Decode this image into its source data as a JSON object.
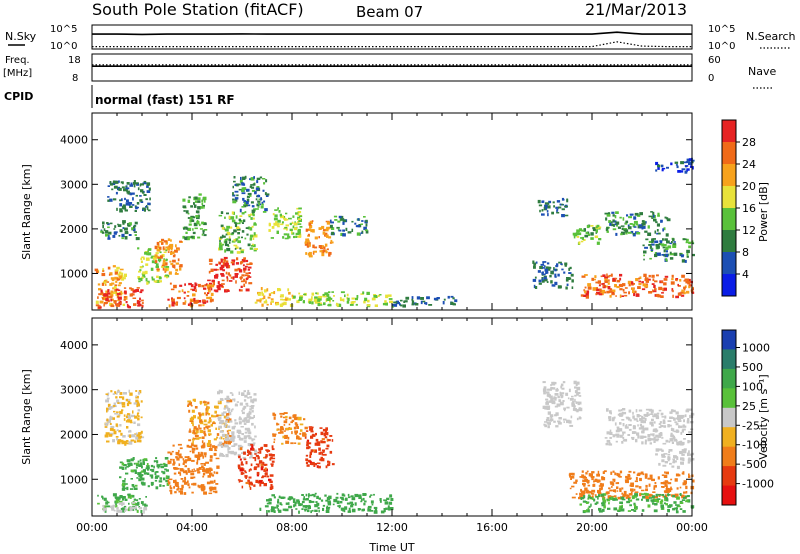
{
  "header": {
    "station": "South Pole Station (fitACF)",
    "beam": "Beam 07",
    "date": "21/Mar/2013",
    "program": "normal (fast) 151 RF"
  },
  "labels": {
    "nsky": "N.Sky",
    "nsearch": "N.Search",
    "freq": "Freq.",
    "freq_unit": "[MHz]",
    "nave": "Nave",
    "cpid": "CPID",
    "nsky_hi": "10^5",
    "nsky_lo": "10^0",
    "nsearch_hi": "10^5",
    "nsearch_lo": "10^0",
    "freq_hi": "18",
    "freq_lo": "8",
    "nave_hi": "60",
    "nave_lo": "0"
  },
  "chart_data": [
    {
      "type": "heatmap",
      "panel": "power",
      "ylabel": "Slant Range [km]",
      "xlabel": "",
      "ylim": [
        180,
        4600
      ],
      "xlim": [
        0,
        24
      ],
      "yticks": [
        "1000",
        "2000",
        "3000",
        "4000"
      ],
      "colorbar": {
        "label": "Power [dB]",
        "ticks": [
          "4",
          "8",
          "12",
          "16",
          "20",
          "24",
          "28"
        ],
        "colors": [
          "#0a1de6",
          "#1c4fb3",
          "#2f7c3f",
          "#59c13a",
          "#e8e23a",
          "#f7a21c",
          "#f06a18",
          "#e62323"
        ]
      },
      "regions": [
        {
          "t0": 0.1,
          "t1": 1.3,
          "r0": 300,
          "r1": 1200,
          "level": 20
        },
        {
          "t0": 0.2,
          "t1": 2.0,
          "r0": 250,
          "r1": 700,
          "level": 26
        },
        {
          "t0": 0.3,
          "t1": 1.8,
          "r0": 1800,
          "r1": 2200,
          "level": 8
        },
        {
          "t0": 0.6,
          "t1": 2.3,
          "r0": 2400,
          "r1": 3100,
          "level": 6
        },
        {
          "t0": 1.8,
          "t1": 3.0,
          "r0": 800,
          "r1": 1600,
          "level": 14
        },
        {
          "t0": 2.5,
          "t1": 3.5,
          "r0": 1000,
          "r1": 1800,
          "level": 22
        },
        {
          "t0": 3.0,
          "t1": 4.8,
          "r0": 300,
          "r1": 800,
          "level": 24
        },
        {
          "t0": 3.6,
          "t1": 4.5,
          "r0": 1800,
          "r1": 2800,
          "level": 10
        },
        {
          "t0": 4.6,
          "t1": 6.3,
          "r0": 600,
          "r1": 1400,
          "level": 26
        },
        {
          "t0": 5.0,
          "t1": 6.5,
          "r0": 1500,
          "r1": 2400,
          "level": 12
        },
        {
          "t0": 5.6,
          "t1": 7.0,
          "r0": 2400,
          "r1": 3200,
          "level": 8
        },
        {
          "t0": 6.5,
          "t1": 8.0,
          "r0": 300,
          "r1": 700,
          "level": 18
        },
        {
          "t0": 7.0,
          "t1": 8.3,
          "r0": 1800,
          "r1": 2500,
          "level": 14
        },
        {
          "t0": 8.5,
          "t1": 9.6,
          "r0": 1400,
          "r1": 2200,
          "level": 22
        },
        {
          "t0": 8.0,
          "t1": 12.0,
          "r0": 300,
          "r1": 600,
          "level": 14
        },
        {
          "t0": 9.5,
          "t1": 11.0,
          "r0": 1900,
          "r1": 2300,
          "level": 8
        },
        {
          "t0": 12.0,
          "t1": 14.5,
          "r0": 300,
          "r1": 500,
          "level": 6
        },
        {
          "t0": 17.6,
          "t1": 19.2,
          "r0": 700,
          "r1": 1300,
          "level": 6
        },
        {
          "t0": 17.8,
          "t1": 19.0,
          "r0": 2300,
          "r1": 2700,
          "level": 6
        },
        {
          "t0": 19.2,
          "t1": 20.4,
          "r0": 1700,
          "r1": 2100,
          "level": 12
        },
        {
          "t0": 19.5,
          "t1": 24.0,
          "r0": 500,
          "r1": 1000,
          "level": 24
        },
        {
          "t0": 20.5,
          "t1": 23.0,
          "r0": 1900,
          "r1": 2400,
          "level": 8
        },
        {
          "t0": 22.0,
          "t1": 24.0,
          "r0": 1300,
          "r1": 1800,
          "level": 8
        },
        {
          "t0": 22.5,
          "t1": 24.0,
          "r0": 3300,
          "r1": 3600,
          "level": 4
        }
      ]
    },
    {
      "type": "heatmap",
      "panel": "velocity",
      "ylabel": "Slant Range [km]",
      "xlabel": "Time UT",
      "ylim": [
        180,
        4600
      ],
      "xlim": [
        0,
        24
      ],
      "yticks": [
        "1000",
        "2000",
        "3000",
        "4000"
      ],
      "xticks": [
        "00:00",
        "04:00",
        "08:00",
        "12:00",
        "16:00",
        "20:00",
        "00:00"
      ],
      "colorbar": {
        "label": "Velocity [m s⁻¹]",
        "ticks": [
          "1000",
          "500",
          "100",
          "25",
          "-25",
          "-100",
          "-500",
          "-1000"
        ],
        "colors": [
          "#1a3fb0",
          "#2a7d6a",
          "#3fa84a",
          "#59c13a",
          "#c8c8c8",
          "#f0b020",
          "#f07d1a",
          "#e63a10",
          "#e61010"
        ]
      },
      "regions": [
        {
          "t0": 0.2,
          "t1": 2.2,
          "r0": 300,
          "r1": 700,
          "v": 80
        },
        {
          "t0": 0.4,
          "t1": 2.2,
          "r0": 300,
          "r1": 500,
          "v": 0
        },
        {
          "t0": 1.0,
          "t1": 3.0,
          "r0": 800,
          "r1": 1500,
          "v": 100
        },
        {
          "t0": 0.5,
          "t1": 2.0,
          "r0": 1800,
          "r1": 3000,
          "v": -30
        },
        {
          "t0": 3.0,
          "t1": 5.0,
          "r0": 700,
          "r1": 1800,
          "v": -250
        },
        {
          "t0": 3.8,
          "t1": 5.5,
          "r0": 1800,
          "r1": 2800,
          "v": -100
        },
        {
          "t0": 5.0,
          "t1": 6.5,
          "r0": 1500,
          "r1": 3000,
          "v": 0
        },
        {
          "t0": 5.8,
          "t1": 7.2,
          "r0": 800,
          "r1": 1800,
          "v": -700
        },
        {
          "t0": 6.5,
          "t1": 12.0,
          "r0": 300,
          "r1": 700,
          "v": 200
        },
        {
          "t0": 8.5,
          "t1": 9.6,
          "r0": 1300,
          "r1": 2200,
          "v": -700
        },
        {
          "t0": 7.2,
          "t1": 8.5,
          "r0": 1800,
          "r1": 2500,
          "v": -150
        },
        {
          "t0": 19.0,
          "t1": 24.0,
          "r0": 600,
          "r1": 1200,
          "v": -300
        },
        {
          "t0": 19.5,
          "t1": 24.0,
          "r0": 300,
          "r1": 700,
          "v": 80
        },
        {
          "t0": 20.5,
          "t1": 24.0,
          "r0": 1800,
          "r1": 2600,
          "v": 0
        },
        {
          "t0": 22.5,
          "t1": 24.0,
          "r0": 1300,
          "r1": 1700,
          "v": 0
        },
        {
          "t0": 18.0,
          "t1": 19.5,
          "r0": 2200,
          "r1": 3200,
          "v": 0
        }
      ]
    },
    {
      "type": "line",
      "panel": "noise",
      "series": [
        {
          "name": "N.Sky",
          "values": [
            0.62,
            0.62,
            0.61,
            0.62,
            0.62,
            0.62,
            0.63,
            0.62,
            0.62,
            0.62,
            0.62,
            0.62,
            0.62,
            0.62,
            0.62,
            0.62,
            0.62,
            0.62,
            0.62,
            0.62,
            0.62,
            0.7,
            0.62,
            0.62,
            0.62
          ]
        },
        {
          "name": "N.Search",
          "values": [
            0.1,
            0.1,
            0.1,
            0.1,
            0.1,
            0.1,
            0.1,
            0.1,
            0.1,
            0.1,
            0.1,
            0.1,
            0.1,
            0.1,
            0.1,
            0.1,
            0.1,
            0.1,
            0.1,
            0.1,
            0.1,
            0.3,
            0.12,
            0.1,
            0.1
          ]
        }
      ]
    },
    {
      "type": "line",
      "panel": "freq-nave",
      "series": [
        {
          "name": "Freq.",
          "values": [
            0.55,
            0.55,
            0.55,
            0.55,
            0.55,
            0.55,
            0.55,
            0.55,
            0.55,
            0.55,
            0.55,
            0.55,
            0.55,
            0.55,
            0.55,
            0.55,
            0.55,
            0.55,
            0.55,
            0.55,
            0.55,
            0.55,
            0.55,
            0.55,
            0.55
          ]
        },
        {
          "name": "Nave",
          "values": [
            0.6,
            0.6,
            0.6,
            0.6,
            0.6,
            0.6,
            0.6,
            0.6,
            0.6,
            0.6,
            0.6,
            0.6,
            0.6,
            0.6,
            0.6,
            0.6,
            0.6,
            0.6,
            0.6,
            0.6,
            0.6,
            0.6,
            0.6,
            0.6,
            0.6
          ]
        }
      ]
    }
  ]
}
